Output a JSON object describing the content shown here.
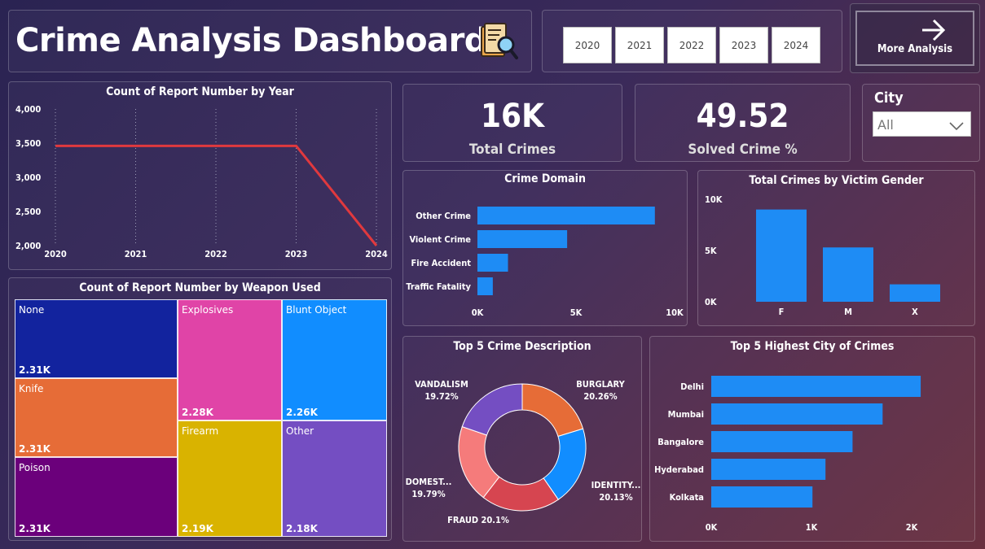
{
  "header": {
    "title": "Crime Analysis Dashboard",
    "icon": "magnifier-document-icon"
  },
  "year_slicer": {
    "years": [
      "2020",
      "2021",
      "2022",
      "2023",
      "2024"
    ]
  },
  "more_analysis": {
    "label": "More Analysis",
    "icon": "arrow-right-icon"
  },
  "kpis": {
    "total_crimes": {
      "value": "16K",
      "label": "Total Crimes"
    },
    "solved_pct": {
      "value": "49.52",
      "label": "Solved Crime %"
    }
  },
  "city_filter": {
    "label": "City",
    "value": "All"
  },
  "colors": {
    "accent_blue": "#1e8cf5",
    "line_red": "#e0393e"
  },
  "charts": [
    {
      "id": "year_line",
      "type": "line",
      "title": "Count of Report Number by Year",
      "x": [
        "2020",
        "2021",
        "2022",
        "2023",
        "2024"
      ],
      "series": [
        {
          "values": [
            3460,
            3460,
            3460,
            3460,
            2000
          ]
        }
      ],
      "ylim": [
        2000,
        4000
      ],
      "yticks": [
        "4,000",
        "3,500",
        "3,000",
        "2,500",
        "2,000"
      ],
      "grid": "vertical-dotted"
    },
    {
      "id": "weapon_treemap",
      "type": "treemap",
      "title": "Count of Report Number by Weapon Used",
      "items": [
        {
          "label": "None",
          "value": "2.31K",
          "color": "#12239e"
        },
        {
          "label": "Knife",
          "value": "2.31K",
          "color": "#e66c37"
        },
        {
          "label": "Poison",
          "value": "2.31K",
          "color": "#6b007b"
        },
        {
          "label": "Explosives",
          "value": "2.28K",
          "color": "#e044a7"
        },
        {
          "label": "Firearm",
          "value": "2.19K",
          "color": "#d9b300"
        },
        {
          "label": "Blunt Object",
          "value": "2.26K",
          "color": "#118dff"
        },
        {
          "label": "Other",
          "value": "2.18K",
          "color": "#744ec2"
        }
      ]
    },
    {
      "id": "crime_domain",
      "type": "bar",
      "orientation": "horizontal",
      "title": "Crime Domain",
      "categories": [
        "Other Crime",
        "Violent Crime",
        "Fire Accident",
        "Traffic Fatality"
      ],
      "values": [
        9000,
        4550,
        1550,
        780
      ],
      "xlim": [
        0,
        10000
      ],
      "xticks": [
        "0K",
        "5K",
        "10K"
      ]
    },
    {
      "id": "victim_gender",
      "type": "bar",
      "orientation": "vertical",
      "title": "Total Crimes by Victim Gender",
      "categories": [
        "F",
        "M",
        "X"
      ],
      "values": [
        9000,
        5300,
        1700
      ],
      "ylim": [
        0,
        10000
      ],
      "yticks": [
        "10K",
        "5K",
        "0K"
      ]
    },
    {
      "id": "crime_desc",
      "type": "pie",
      "variant": "donut",
      "title": "Top 5 Crime Description",
      "slices": [
        {
          "name": "BURGLARY",
          "pct": 20.26,
          "pct_label": "20.26%",
          "color": "#e66c37"
        },
        {
          "name": "IDENTITY...",
          "pct": 20.13,
          "pct_label": "20.13%",
          "color": "#118dff"
        },
        {
          "name": "FRAUD",
          "pct": 20.1,
          "pct_label": "20.1%",
          "color": "#d64550"
        },
        {
          "name": "DOMEST...",
          "pct": 19.79,
          "pct_label": "19.79%",
          "color": "#f57b7b"
        },
        {
          "name": "VANDALISM",
          "pct": 19.72,
          "pct_label": "19.72%",
          "color": "#744ec2"
        }
      ]
    },
    {
      "id": "top_cities",
      "type": "bar",
      "orientation": "horizontal",
      "title": "Top 5 Highest City of Crimes",
      "categories": [
        "Delhi",
        "Mumbai",
        "Bangalore",
        "Hyderabad",
        "Kolkata"
      ],
      "values": [
        2090,
        1710,
        1410,
        1140,
        1010
      ],
      "xlim": [
        0,
        2000
      ],
      "xticks": [
        "0K",
        "1K",
        "2K"
      ]
    }
  ]
}
